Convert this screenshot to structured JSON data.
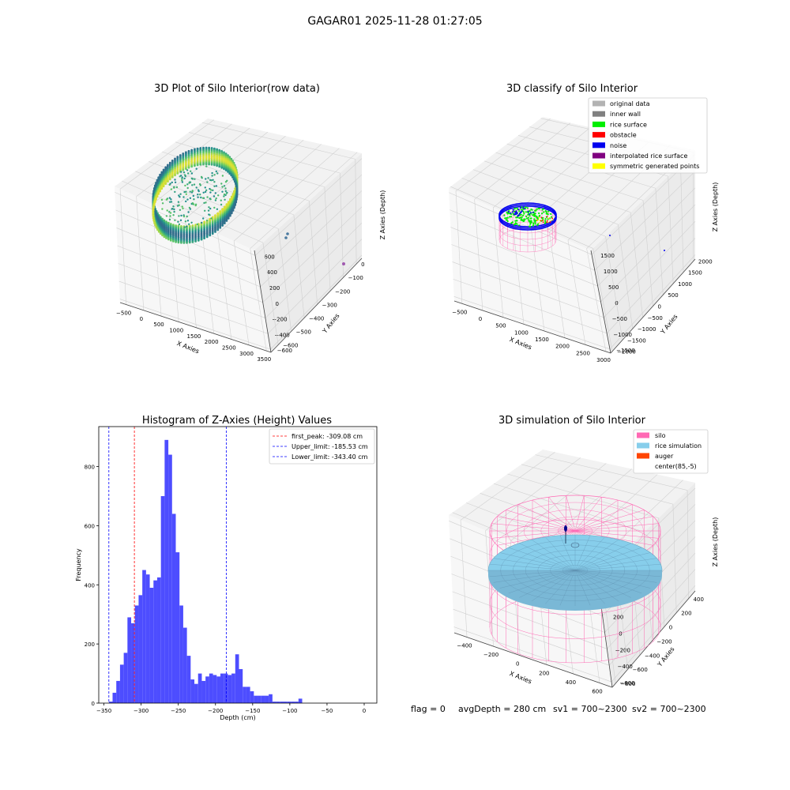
{
  "figure": {
    "suptitle": "GAGAR01 2025-11-28 01:27:05",
    "footer": {
      "flag": "flag = 0",
      "avg": "avgDepth = 280 cm",
      "sv1": "sv1 = 700~2300",
      "sv2": "sv2 = 700~2300"
    }
  },
  "chart_data": [
    {
      "type": "scatter",
      "title": "3D Plot of Silo Interior(row data)",
      "xlabel": "X Axies",
      "ylabel": "Y Axies",
      "zlabel": "Z Axies (Depth)",
      "x_ticks": [
        "−500",
        "0",
        "500",
        "1000",
        "1500",
        "2000",
        "2500",
        "3000",
        "3500"
      ],
      "y_ticks": [
        "−600",
        "−400",
        "−200",
        "0",
        "200",
        "400",
        "600"
      ],
      "z_ticks": [
        "−600",
        "−500",
        "−400",
        "−300",
        "−200",
        "−100",
        "0"
      ],
      "xlim": [
        -600,
        3500
      ],
      "ylim": [
        -700,
        700
      ],
      "zlim": [
        -700,
        30
      ],
      "colormap": "viridis"
    },
    {
      "type": "scatter",
      "title": "3D classify of Silo Interior",
      "xlabel": "X Axies",
      "ylabel": "Y Axies",
      "zlabel": "Z Axies (Depth)",
      "x_ticks": [
        "−500",
        "0",
        "500",
        "1000",
        "1500",
        "2000",
        "2500",
        "3000"
      ],
      "y_ticks": [
        "−1500",
        "−1000",
        "−500",
        "0",
        "500",
        "1000",
        "1500"
      ],
      "z_ticks": [
        "−2000",
        "−1500",
        "−1000",
        "−500",
        "0",
        "500",
        "1000",
        "1500",
        "2000"
      ],
      "xlim": [
        -600,
        3200
      ],
      "ylim": [
        -1600,
        1600
      ],
      "zlim": [
        -2000,
        2000
      ],
      "legend_position": "top-right",
      "legend": [
        {
          "label": "original data",
          "color": "#b3b3b3"
        },
        {
          "label": "inner wall",
          "color": "#808080"
        },
        {
          "label": "rice surface",
          "color": "#00ee00"
        },
        {
          "label": "obstacle",
          "color": "#ff0000"
        },
        {
          "label": "noise",
          "color": "#0000ee"
        },
        {
          "label": "interpolated rice surface",
          "color": "#800080"
        },
        {
          "label": "symmetric generated points",
          "color": "#ffff00"
        }
      ]
    },
    {
      "type": "bar",
      "title": "Histogram of Z-Axies (Height) Values",
      "xlabel": "Depth (cm)",
      "ylabel": "Frequency",
      "xlim": [
        -357,
        17
      ],
      "ylim": [
        0,
        935
      ],
      "x_ticks": [
        -350,
        -300,
        -250,
        -200,
        -150,
        -100,
        -50,
        0
      ],
      "y_ticks": [
        0,
        200,
        400,
        600,
        800
      ],
      "bar_color": "#4d4dff",
      "bin_start": -343.4,
      "bin_width": 5.0,
      "values": [
        5,
        35,
        75,
        130,
        170,
        290,
        270,
        330,
        365,
        450,
        435,
        390,
        415,
        425,
        700,
        890,
        840,
        640,
        510,
        330,
        255,
        160,
        80,
        65,
        100,
        75,
        90,
        100,
        95,
        90,
        100,
        100,
        95,
        100,
        165,
        115,
        55,
        55,
        40,
        25,
        25,
        25,
        25,
        30,
        5,
        5,
        5,
        5,
        5,
        5,
        5,
        15
      ],
      "lines": [
        {
          "label": "first_peak: -309.08 cm",
          "x": -309.08,
          "color": "#ff0000"
        },
        {
          "label": "Upper_limit: -185.53 cm",
          "x": -185.53,
          "color": "#0000ff"
        },
        {
          "label": "Lower_limit: -343.40 cm",
          "x": -343.4,
          "color": "#0000ff"
        }
      ],
      "legend_position": "top-right"
    },
    {
      "type": "scatter",
      "title": "3D simulation of Silo Interior",
      "xlabel": "X Axies",
      "ylabel": "Y Axies",
      "zlabel": "Z Axies (Depth)",
      "x_ticks": [
        "−400",
        "−200",
        "0",
        "200",
        "400",
        "600"
      ],
      "y_ticks": [
        "−600",
        "−400",
        "−200",
        "0",
        "200",
        "400",
        "600"
      ],
      "z_ticks": [
        "−800",
        "−600",
        "−400",
        "−200",
        "0",
        "200",
        "400"
      ],
      "xlim": [
        -600,
        750
      ],
      "ylim": [
        -700,
        700
      ],
      "zlim": [
        -900,
        450
      ],
      "legend_position": "top-right",
      "legend": [
        {
          "label": "silo",
          "color": "#ff69b4"
        },
        {
          "label": "rice simulation",
          "color": "#87ceeb"
        },
        {
          "label": "auger",
          "color": "#ff4500"
        },
        {
          "label": "center(85,-5)",
          "color": ""
        }
      ]
    }
  ]
}
